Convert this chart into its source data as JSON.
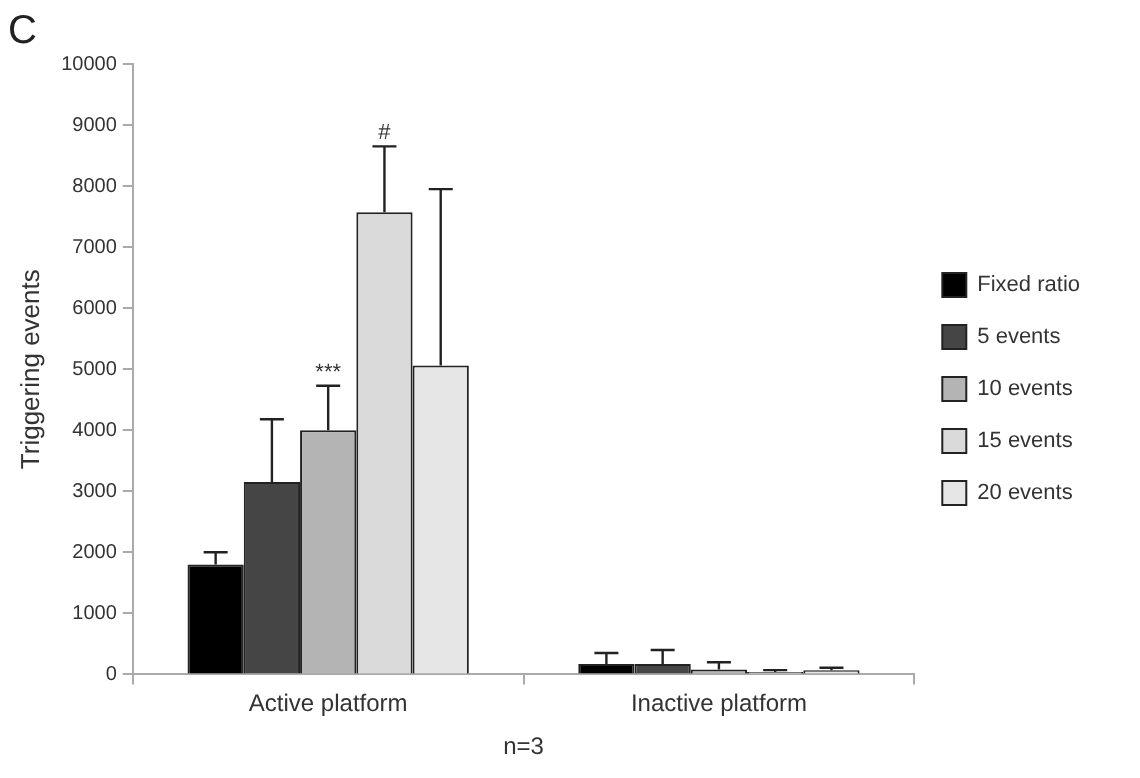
{
  "chart_data": {
    "type": "bar",
    "title": "C",
    "xlabel": "n=3",
    "ylabel": "Triggering events",
    "categories": [
      "Active platform",
      "Inactive platform"
    ],
    "series": [
      {
        "name": "Fixed ratio",
        "color": "#000000",
        "values": [
          1800,
          170
        ],
        "errors": [
          [
            1800,
            2000
          ],
          [
            170,
            350
          ]
        ]
      },
      {
        "name": "5 events",
        "color": "#454545",
        "values": [
          3150,
          170
        ],
        "errors": [
          [
            3150,
            4180
          ],
          [
            170,
            400
          ]
        ]
      },
      {
        "name": "10 events",
        "color": "#b4b4b4",
        "values": [
          4000,
          80
        ],
        "errors": [
          [
            4000,
            4730
          ],
          [
            80,
            200
          ]
        ],
        "value_labels": [
          "***",
          null
        ]
      },
      {
        "name": "15 events",
        "color": "#dadada",
        "values": [
          7570,
          40
        ],
        "errors": [
          [
            7570,
            8650
          ],
          [
            40,
            70
          ]
        ],
        "value_labels": [
          "#",
          null
        ]
      },
      {
        "name": "20 events",
        "color": "#e6e6e6",
        "values": [
          5060,
          70
        ],
        "errors": [
          [
            5060,
            7950
          ],
          [
            70,
            110
          ]
        ]
      }
    ],
    "ylim": [
      0,
      10000
    ],
    "yticks": [
      0,
      1000,
      2000,
      3000,
      4000,
      5000,
      6000,
      7000,
      8000,
      9000,
      10000
    ],
    "legend": "right"
  }
}
